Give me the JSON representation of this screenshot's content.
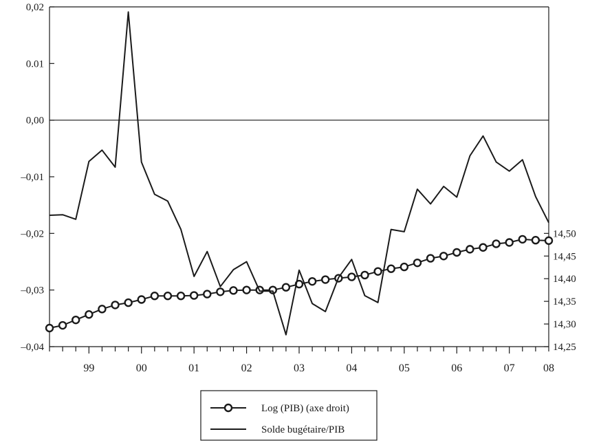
{
  "chart_data": {
    "type": "line",
    "x_tick_labels": [
      "99",
      "00",
      "01",
      "02",
      "03",
      "04",
      "05",
      "06",
      "07",
      "08"
    ],
    "left_axis": {
      "ylim": [
        -0.04,
        0.02
      ],
      "tick_labels": [
        "0,02",
        "0.01",
        "0,00",
        "–0,01",
        "–0,02",
        "–0,03",
        "–0,04"
      ],
      "tick_values": [
        0.02,
        0.01,
        0.0,
        -0.01,
        -0.02,
        -0.03,
        -0.04
      ]
    },
    "right_axis": {
      "ylim": [
        14.25,
        14.5
      ],
      "tick_labels": [
        "14,50",
        "14,45",
        "14,40",
        "14,35",
        "14,30",
        "14,25"
      ],
      "tick_values": [
        14.5,
        14.45,
        14.4,
        14.35,
        14.3,
        14.25
      ]
    },
    "zero_line": 0.0,
    "series": [
      {
        "name": "Log (PIB) (axe droit)",
        "axis": "right",
        "marker": "circle",
        "color": "#1a1a1a",
        "values": [
          14.291,
          14.297,
          14.309,
          14.321,
          14.333,
          14.342,
          14.347,
          14.354,
          14.362,
          14.362,
          14.362,
          14.363,
          14.366,
          14.371,
          14.374,
          14.375,
          14.375,
          14.375,
          14.381,
          14.388,
          14.394,
          14.398,
          14.401,
          14.404,
          14.408,
          14.416,
          14.422,
          14.426,
          14.435,
          14.445,
          14.45,
          14.458,
          14.465,
          14.469,
          14.477,
          14.48,
          14.487,
          14.485,
          14.484
        ]
      },
      {
        "name": "Solde bugétaire/PIB",
        "axis": "left",
        "marker": "none",
        "color": "#1a1a1a",
        "values": [
          -0.0168,
          -0.0167,
          -0.0175,
          -0.0073,
          -0.0053,
          -0.0083,
          0.0191,
          -0.0074,
          -0.0131,
          -0.0143,
          -0.0193,
          -0.0276,
          -0.0232,
          -0.0294,
          -0.0264,
          -0.025,
          -0.0302,
          -0.0302,
          -0.0379,
          -0.0265,
          -0.0324,
          -0.0338,
          -0.0278,
          -0.0246,
          -0.031,
          -0.0322,
          -0.0193,
          -0.0197,
          -0.0122,
          -0.0148,
          -0.0117,
          -0.0136,
          -0.0063,
          -0.0028,
          -0.0074,
          -0.009,
          -0.007,
          -0.0135,
          -0.0181
        ]
      }
    ],
    "legend": {
      "placement": "bottom-center",
      "entries": [
        "Log (PIB) (axe droit)",
        "Solde bugétaire/PIB"
      ]
    },
    "grid": false
  }
}
